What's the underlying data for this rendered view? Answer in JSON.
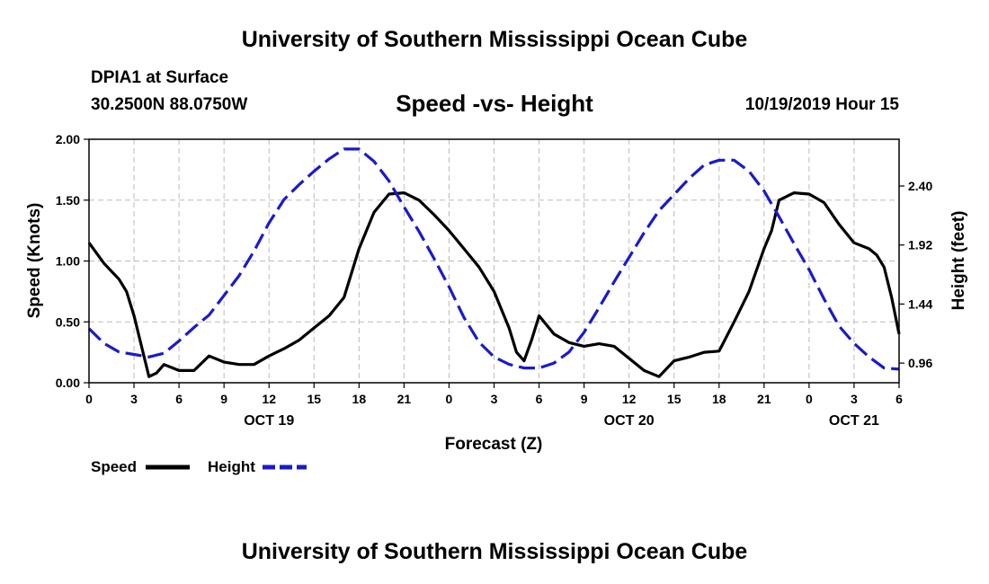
{
  "page_title_top": "University of Southern Mississippi Ocean Cube",
  "page_title_bottom": "University of Southern Mississippi Ocean Cube",
  "station": "DPIA1 at Surface",
  "coords": "30.2500N 88.0750W",
  "chart_title": "Speed -vs- Height",
  "datetime": "10/19/2019 Hour 15",
  "colors": {
    "speed": "#000000",
    "height": "#1a1acc",
    "grid": "#bbbbbb"
  },
  "chart_data": {
    "type": "line",
    "title": "Speed -vs- Height",
    "xlabel": "Forecast (Z)",
    "ylabel": "Speed (Knots)",
    "y2label": "Height (feet)",
    "xlim": [
      0,
      54
    ],
    "ylim": [
      0,
      2.0
    ],
    "y2lim": [
      0.8,
      2.78
    ],
    "x_ticks": [
      0,
      3,
      6,
      9,
      12,
      15,
      18,
      21,
      24,
      27,
      30,
      33,
      36,
      39,
      42,
      45,
      48,
      51,
      54
    ],
    "x_tick_labels": [
      "0",
      "3",
      "6",
      "9",
      "12",
      "15",
      "18",
      "21",
      "0",
      "3",
      "6",
      "9",
      "12",
      "15",
      "18",
      "21",
      "0",
      "3",
      "6"
    ],
    "date_labels": [
      {
        "x": 12,
        "label": "OCT 19"
      },
      {
        "x": 36,
        "label": "OCT 20"
      },
      {
        "x": 51,
        "label": "OCT 21"
      }
    ],
    "y_ticks": [
      0,
      0.5,
      1.0,
      1.5,
      2.0
    ],
    "y_tick_labels": [
      "0.00",
      "0.50",
      "1.00",
      "1.50",
      "2.00"
    ],
    "y2_ticks": [
      0.96,
      1.44,
      1.92,
      2.4
    ],
    "y2_tick_labels": [
      "0.96",
      "1.44",
      "1.92",
      "2.40"
    ],
    "legend": [
      {
        "name": "Speed",
        "style": "solid"
      },
      {
        "name": "Height",
        "style": "dashed"
      }
    ],
    "series": [
      {
        "name": "Speed",
        "axis": "left",
        "x": [
          0,
          1,
          2,
          2.5,
          3,
          3.5,
          4,
          4.5,
          5,
          6,
          7,
          8,
          9,
          10,
          11,
          12,
          13,
          14,
          15,
          16,
          17,
          18,
          19,
          20,
          21,
          22,
          23,
          24,
          25,
          26,
          27,
          28,
          28.5,
          29,
          29.5,
          30,
          31,
          32,
          33,
          34,
          35,
          36,
          37,
          38,
          39,
          40,
          41,
          42,
          43,
          44,
          45,
          45.5,
          46,
          47,
          48,
          49,
          50,
          51,
          52,
          52.5,
          53,
          53.5,
          54
        ],
        "values": [
          1.15,
          0.98,
          0.85,
          0.75,
          0.55,
          0.3,
          0.05,
          0.08,
          0.15,
          0.1,
          0.1,
          0.22,
          0.17,
          0.15,
          0.15,
          0.22,
          0.28,
          0.35,
          0.45,
          0.55,
          0.7,
          1.1,
          1.4,
          1.55,
          1.56,
          1.5,
          1.38,
          1.25,
          1.1,
          0.95,
          0.75,
          0.45,
          0.25,
          0.18,
          0.35,
          0.55,
          0.4,
          0.33,
          0.3,
          0.32,
          0.3,
          0.2,
          0.1,
          0.05,
          0.18,
          0.21,
          0.25,
          0.26,
          0.5,
          0.75,
          1.1,
          1.25,
          1.5,
          1.56,
          1.55,
          1.48,
          1.3,
          1.15,
          1.1,
          1.05,
          0.95,
          0.7,
          0.4
        ]
      },
      {
        "name": "Height",
        "axis": "right",
        "x": [
          0,
          1,
          2,
          3,
          4,
          5,
          6,
          7,
          8,
          9,
          10,
          11,
          12,
          13,
          14,
          15,
          16,
          17,
          18,
          19,
          20,
          21,
          22,
          23,
          24,
          25,
          26,
          27,
          28,
          29,
          30,
          31,
          32,
          33,
          34,
          35,
          36,
          37,
          38,
          39,
          40,
          41,
          42,
          43,
          44,
          45,
          46,
          47,
          48,
          49,
          50,
          51,
          52,
          53,
          54
        ],
        "values": [
          1.24,
          1.12,
          1.05,
          1.03,
          1.01,
          1.04,
          1.14,
          1.25,
          1.35,
          1.51,
          1.67,
          1.87,
          2.1,
          2.29,
          2.41,
          2.52,
          2.62,
          2.7,
          2.7,
          2.6,
          2.44,
          2.23,
          2.03,
          1.81,
          1.58,
          1.33,
          1.13,
          1.01,
          0.95,
          0.92,
          0.92,
          0.96,
          1.05,
          1.21,
          1.41,
          1.62,
          1.82,
          2.02,
          2.2,
          2.33,
          2.46,
          2.57,
          2.61,
          2.61,
          2.52,
          2.36,
          2.15,
          1.93,
          1.72,
          1.48,
          1.26,
          1.12,
          1.01,
          0.92,
          0.91
        ]
      }
    ]
  }
}
